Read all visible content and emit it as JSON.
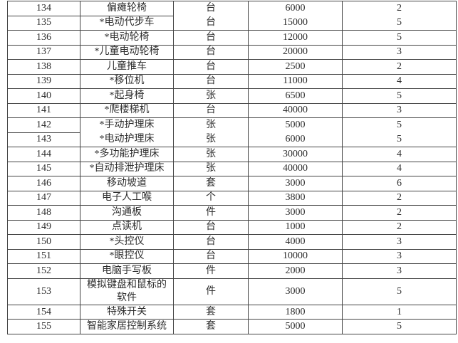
{
  "colors": {
    "border": "#434343",
    "text": "#2e2e2e",
    "background": "#ffffff"
  },
  "table": {
    "columns": [
      "no",
      "name",
      "unit",
      "price",
      "qty"
    ],
    "rows": [
      {
        "no": "134",
        "name": "偏瘫轮椅",
        "unit": "台",
        "price": "6000",
        "qty": "2"
      },
      {
        "no": "135",
        "name": "*电动代步车",
        "unit": "台",
        "price": "15000",
        "qty": "5"
      },
      {
        "no": "136",
        "name": "*电动轮椅",
        "unit": "台",
        "price": "12000",
        "qty": "5"
      },
      {
        "no": "137",
        "name": "*儿童电动轮椅",
        "unit": "台",
        "price": "20000",
        "qty": "3"
      },
      {
        "no": "138",
        "name": "儿童推车",
        "unit": "台",
        "price": "2500",
        "qty": "2"
      },
      {
        "no": "139",
        "name": "*移位机",
        "unit": "台",
        "price": "11000",
        "qty": "4"
      },
      {
        "no": "140",
        "name": "*起身椅",
        "unit": "张",
        "price": "6500",
        "qty": "5"
      },
      {
        "no": "141",
        "name": "*爬楼梯机",
        "unit": "台",
        "price": "40000",
        "qty": "3"
      },
      {
        "no": "142",
        "name": "*手动护理床",
        "unit": "张",
        "price": "5000",
        "qty": "5"
      },
      {
        "no": "143",
        "name": "*电动护理床",
        "unit": "张",
        "price": "6000",
        "qty": "5"
      },
      {
        "no": "144",
        "name": "*多功能护理床",
        "unit": "张",
        "price": "30000",
        "qty": "4"
      },
      {
        "no": "145",
        "name": "*自动排泄护理床",
        "unit": "张",
        "price": "40000",
        "qty": "4"
      },
      {
        "no": "146",
        "name": "移动坡道",
        "unit": "套",
        "price": "3000",
        "qty": "6"
      },
      {
        "no": "147",
        "name": "电子人工喉",
        "unit": "个",
        "price": "3800",
        "qty": "2"
      },
      {
        "no": "148",
        "name": "沟通板",
        "unit": "件",
        "price": "3000",
        "qty": "2"
      },
      {
        "no": "149",
        "name": "点读机",
        "unit": "台",
        "price": "1000",
        "qty": "2"
      },
      {
        "no": "150",
        "name": "*头控仪",
        "unit": "台",
        "price": "4000",
        "qty": "3"
      },
      {
        "no": "151",
        "name": "*眼控仪",
        "unit": "台",
        "price": "10000",
        "qty": "3"
      },
      {
        "no": "152",
        "name": "电脑手写板",
        "unit": "件",
        "price": "2000",
        "qty": "3"
      },
      {
        "no": "153",
        "name": "模拟键盘和鼠标的软件",
        "unit": "件",
        "price": "3000",
        "qty": "5"
      },
      {
        "no": "154",
        "name": "特殊开关",
        "unit": "套",
        "price": "1800",
        "qty": "1"
      },
      {
        "no": "155",
        "name": "智能家居控制系统",
        "unit": "套",
        "price": "5000",
        "qty": "5"
      }
    ],
    "partial_borders": [
      {
        "after_row": "134",
        "missing_cols": [
          2,
          3,
          4
        ]
      },
      {
        "after_row": "142",
        "missing_cols": [
          1,
          2,
          3,
          4
        ]
      }
    ]
  }
}
